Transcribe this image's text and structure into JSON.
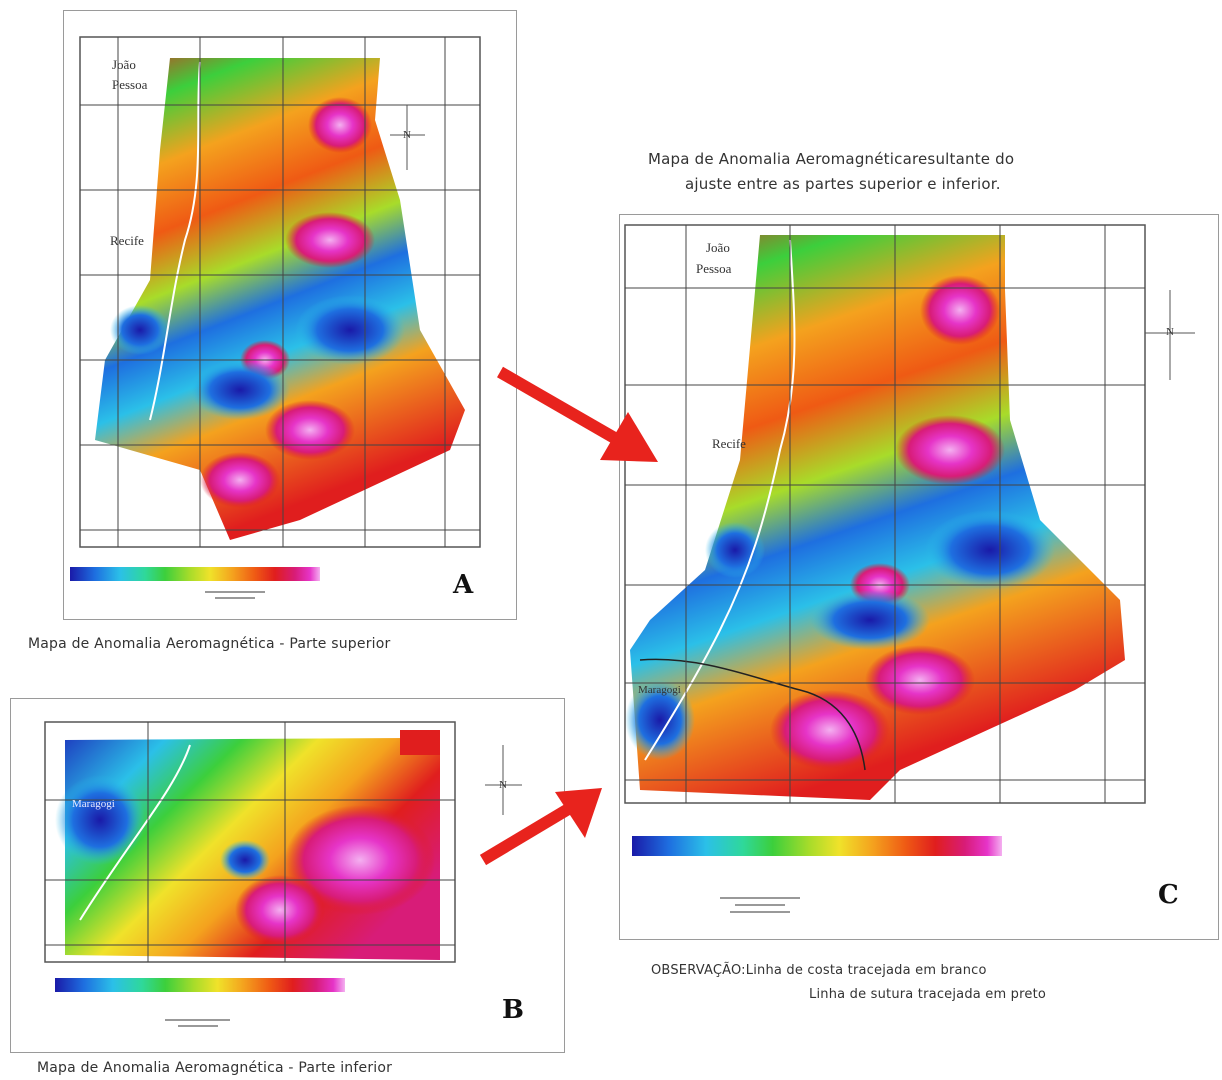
{
  "panel_a": {
    "letter": "A",
    "caption": "Mapa de Anomalia Aeromagnética - Parte superior",
    "cities": [
      "João",
      "Pessoa",
      "Recife"
    ]
  },
  "panel_b": {
    "letter": "B",
    "caption": "Mapa de Anomalia Aeromagnética - Parte inferior",
    "cities": [
      "Maragogi"
    ]
  },
  "panel_c": {
    "letter": "C",
    "title_line1": "Mapa de Anomalia Aeromagnéticaresultante do",
    "title_line2": "ajuste entre as partes superior e inferior.",
    "cities": [
      "João",
      "Pessoa",
      "Recife",
      "Maragogi"
    ]
  },
  "observation": {
    "label": "OBSERVAÇÃO:",
    "line1": "Linha de costa tracejada em branco",
    "line2": "Linha de sutura tracejada em preto"
  },
  "north_symbol": "N",
  "colors": {
    "arrow": "#e8231d",
    "colorbar": [
      "#1a1aa8",
      "#1e6fe0",
      "#2bc0e8",
      "#2fd89a",
      "#3ccf3c",
      "#a8dc2a",
      "#f0e22a",
      "#f4a21e",
      "#ef5a14",
      "#e01e1e",
      "#d81c78",
      "#e634c8",
      "#f4b0f0"
    ]
  }
}
